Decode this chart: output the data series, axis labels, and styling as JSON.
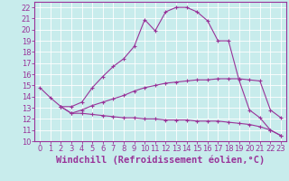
{
  "xlabel": "Windchill (Refroidissement éolien,°C)",
  "xlim": [
    -0.5,
    23.5
  ],
  "ylim": [
    10,
    22.5
  ],
  "yticks": [
    10,
    11,
    12,
    13,
    14,
    15,
    16,
    17,
    18,
    19,
    20,
    21,
    22
  ],
  "xticks": [
    0,
    1,
    2,
    3,
    4,
    5,
    6,
    7,
    8,
    9,
    10,
    11,
    12,
    13,
    14,
    15,
    16,
    17,
    18,
    19,
    20,
    21,
    22,
    23
  ],
  "bg_color": "#c8ecec",
  "line_color": "#993399",
  "grid_color": "#ffffff",
  "line1_x": [
    0,
    1,
    2,
    3,
    4,
    5,
    6,
    7,
    8,
    9,
    10,
    11,
    12,
    13,
    14,
    15,
    16,
    17,
    18,
    19,
    20,
    21,
    22,
    23
  ],
  "line1_y": [
    14.8,
    13.9,
    13.1,
    13.1,
    13.5,
    14.8,
    15.8,
    16.7,
    17.4,
    18.5,
    20.9,
    19.9,
    21.6,
    22.0,
    22.0,
    21.6,
    20.8,
    19.0,
    19.0,
    15.5,
    12.8,
    12.1,
    11.0,
    10.5
  ],
  "line2_x": [
    2,
    3,
    4,
    5,
    6,
    7,
    8,
    9,
    10,
    11,
    12,
    13,
    14,
    15,
    16,
    17,
    18,
    19,
    20,
    21,
    22,
    23
  ],
  "line2_y": [
    13.1,
    12.5,
    12.8,
    13.2,
    13.5,
    13.8,
    14.1,
    14.5,
    14.8,
    15.0,
    15.2,
    15.3,
    15.4,
    15.5,
    15.5,
    15.6,
    15.6,
    15.6,
    15.5,
    15.4,
    12.8,
    12.1
  ],
  "line3_x": [
    2,
    3,
    4,
    5,
    6,
    7,
    8,
    9,
    10,
    11,
    12,
    13,
    14,
    15,
    16,
    17,
    18,
    19,
    20,
    21,
    22,
    23
  ],
  "line3_y": [
    13.1,
    12.5,
    12.5,
    12.4,
    12.3,
    12.2,
    12.1,
    12.1,
    12.0,
    12.0,
    11.9,
    11.9,
    11.9,
    11.8,
    11.8,
    11.8,
    11.7,
    11.6,
    11.5,
    11.3,
    11.0,
    10.5
  ],
  "tick_fontsize": 6,
  "xlabel_fontsize": 7.5
}
